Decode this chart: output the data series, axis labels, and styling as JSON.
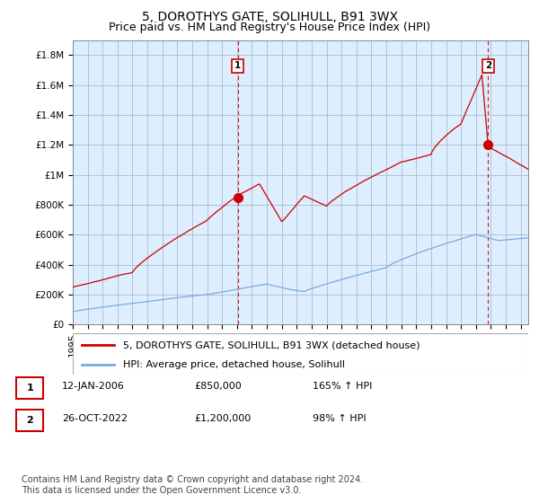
{
  "title": "5, DOROTHYS GATE, SOLIHULL, B91 3WX",
  "subtitle": "Price paid vs. HM Land Registry's House Price Index (HPI)",
  "ylabel_ticks": [
    "£0",
    "£200K",
    "£400K",
    "£600K",
    "£800K",
    "£1M",
    "£1.2M",
    "£1.4M",
    "£1.6M",
    "£1.8M"
  ],
  "ytick_values": [
    0,
    200000,
    400000,
    600000,
    800000,
    1000000,
    1200000,
    1400000,
    1600000,
    1800000
  ],
  "ylim": [
    0,
    1900000
  ],
  "xlim_start": 1995.0,
  "xlim_end": 2025.5,
  "marker1_x": 2006.04,
  "marker1_y": 850000,
  "marker2_x": 2022.82,
  "marker2_y": 1200000,
  "line1_color": "#cc0000",
  "line2_color": "#7aaadd",
  "bg_color": "#ddeeff",
  "plot_bg_color": "#ddeeff",
  "grid_color": "#aabbcc",
  "legend_line1": "5, DOROTHYS GATE, SOLIHULL, B91 3WX (detached house)",
  "legend_line2": "HPI: Average price, detached house, Solihull",
  "table_row1": [
    "1",
    "12-JAN-2006",
    "£850,000",
    "165% ↑ HPI"
  ],
  "table_row2": [
    "2",
    "26-OCT-2022",
    "£1,200,000",
    "98% ↑ HPI"
  ],
  "footnote": "Contains HM Land Registry data © Crown copyright and database right 2024.\nThis data is licensed under the Open Government Licence v3.0.",
  "title_fontsize": 10,
  "subtitle_fontsize": 9,
  "tick_fontsize": 7.5,
  "legend_fontsize": 8,
  "table_fontsize": 8,
  "footnote_fontsize": 7
}
